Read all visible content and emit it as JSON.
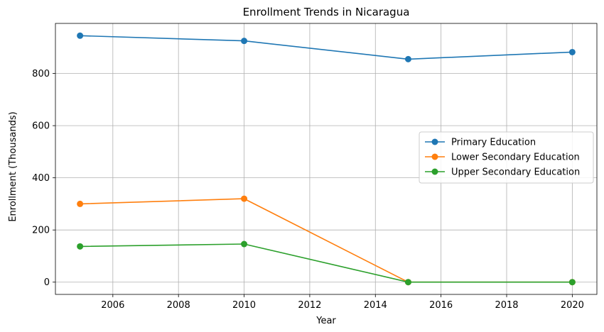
{
  "chart_data": {
    "type": "line",
    "title": "Enrollment Trends in Nicaragua",
    "xlabel": "Year",
    "ylabel": "Enrollment (Thousands)",
    "x": [
      2005,
      2010,
      2015,
      2020
    ],
    "xlim": [
      2004.25,
      2020.75
    ],
    "ylim": [
      -47,
      992
    ],
    "xticks": [
      2006,
      2008,
      2010,
      2012,
      2014,
      2016,
      2018,
      2020
    ],
    "yticks": [
      0,
      200,
      400,
      600,
      800
    ],
    "grid": true,
    "legend_position": "center-right",
    "series": [
      {
        "name": "Primary Education",
        "color": "#1f77b4",
        "marker": "circle",
        "values": [
          945,
          925,
          855,
          882
        ]
      },
      {
        "name": "Lower Secondary Education",
        "color": "#ff7f0e",
        "marker": "circle",
        "values": [
          300,
          320,
          0,
          0
        ]
      },
      {
        "name": "Upper Secondary Education",
        "color": "#2ca02c",
        "marker": "circle",
        "values": [
          137,
          146,
          0,
          0
        ]
      }
    ]
  }
}
